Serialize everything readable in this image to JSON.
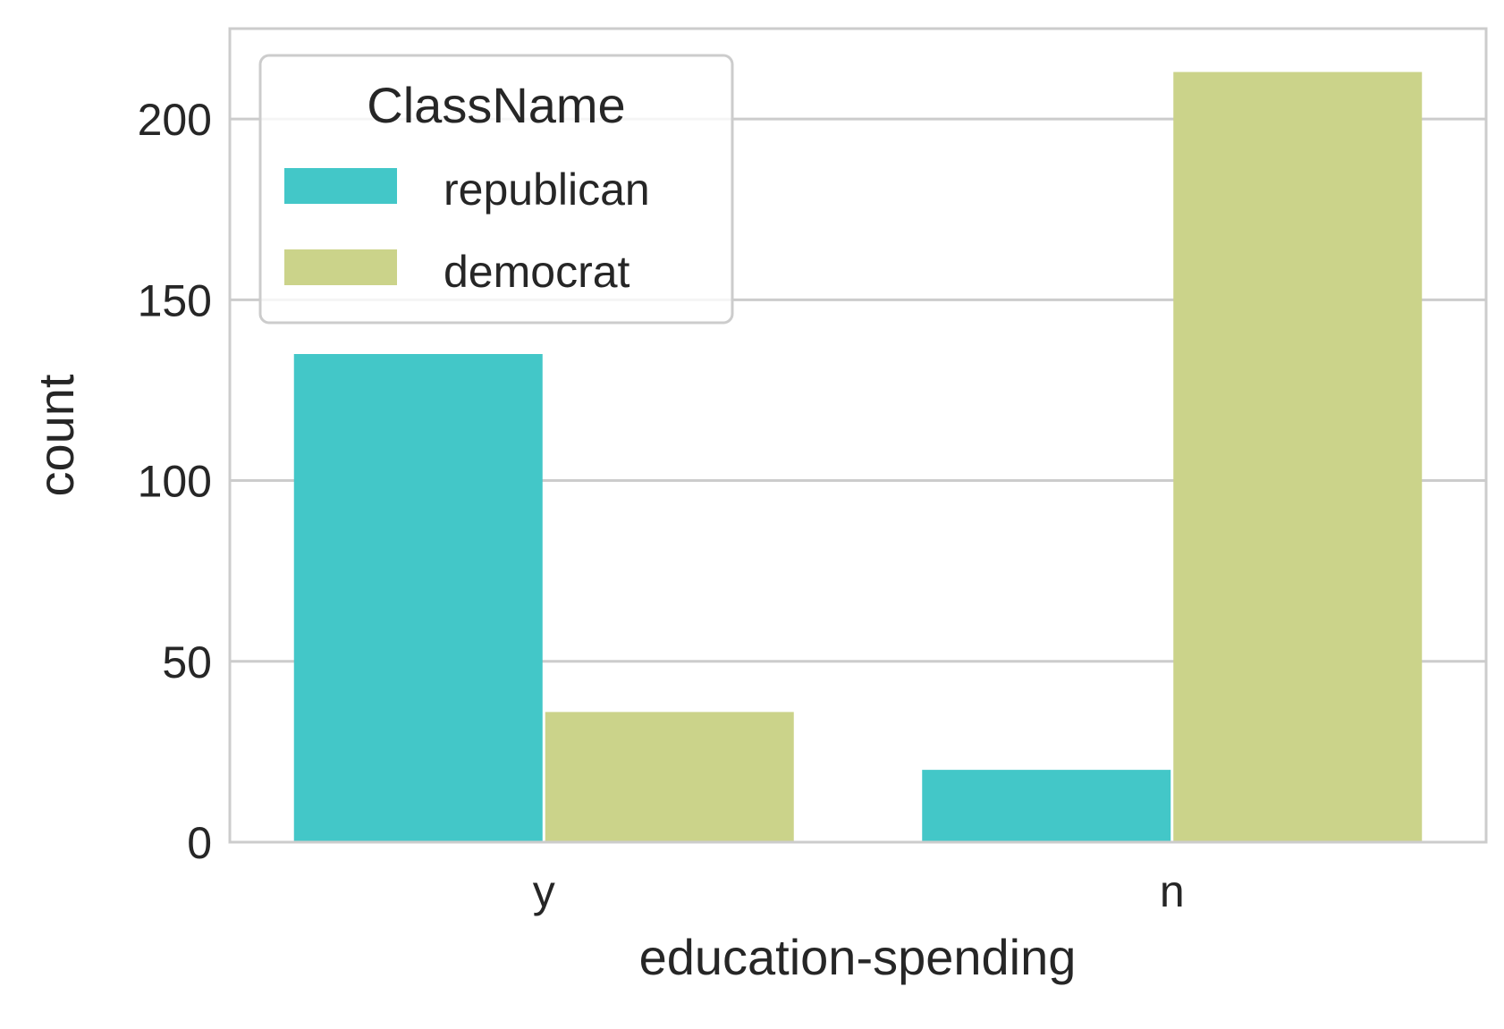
{
  "chart_data": {
    "type": "bar",
    "xlabel": "education-spending",
    "ylabel": "count",
    "categories": [
      "y",
      "n"
    ],
    "ylim": [
      0,
      225
    ],
    "yticks": [
      0,
      50,
      100,
      150,
      200
    ],
    "grid": true,
    "legend": {
      "title": "ClassName",
      "placement": "top-left"
    },
    "series": [
      {
        "name": "republican",
        "color": "#43C7C8",
        "values": [
          135,
          20
        ]
      },
      {
        "name": "democrat",
        "color": "#CBD38A",
        "values": [
          36,
          213
        ]
      }
    ]
  }
}
